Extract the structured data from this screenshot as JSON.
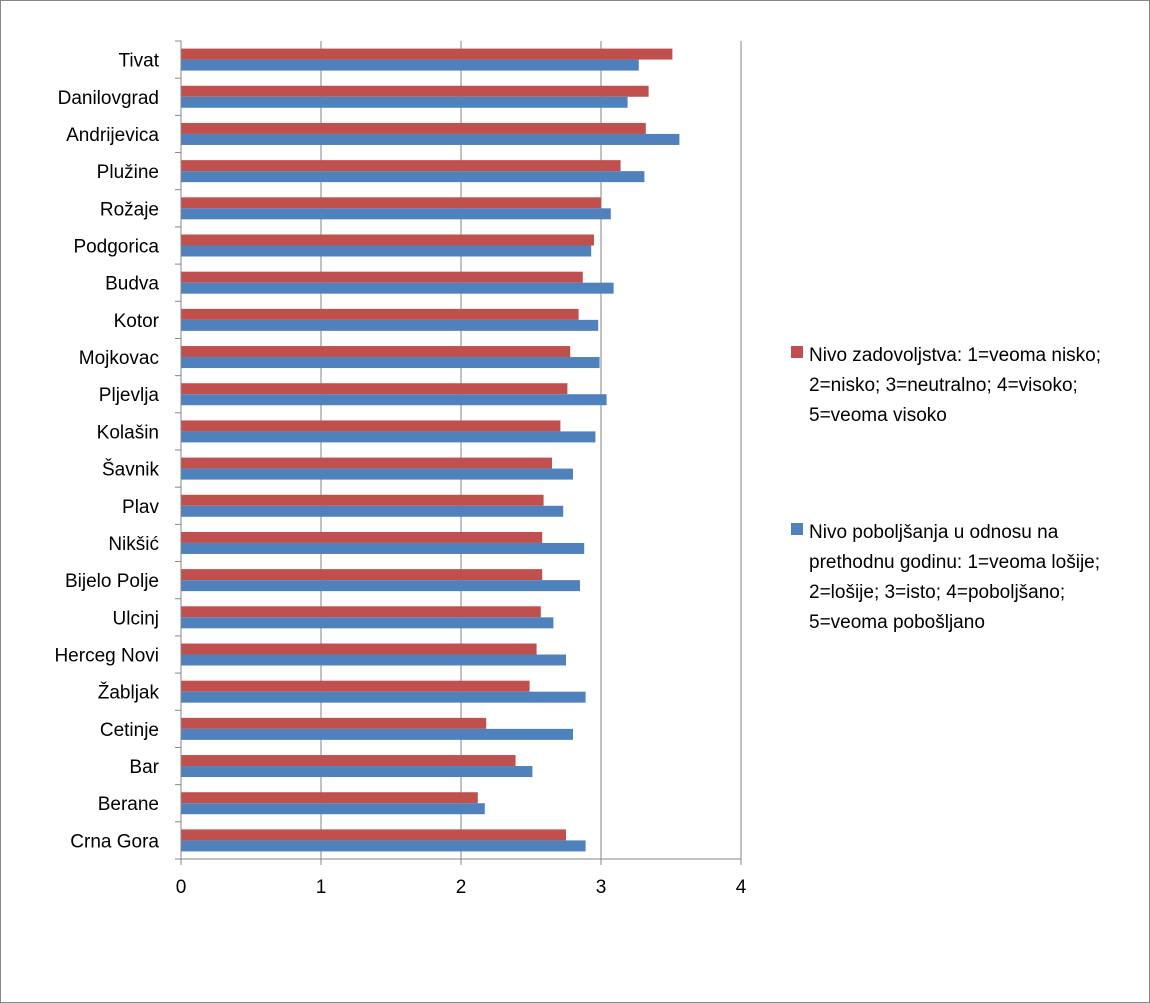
{
  "chart_data": {
    "type": "bar",
    "orientation": "horizontal",
    "categories": [
      "Tivat",
      "Danilovgrad",
      "Andrijevica",
      "Plužine",
      "Rožaje",
      "Podgorica",
      "Budva",
      "Kotor",
      "Mojkovac",
      "Pljevlja",
      "Kolašin",
      "Šavnik",
      "Plav",
      "Nikšić",
      "Bijelo Polje",
      "Ulcinj",
      "Herceg Novi",
      "Žabljak",
      "Cetinje",
      "Bar",
      "Berane",
      "Crna Gora"
    ],
    "series": [
      {
        "name": "Nivo zadovoljstva: 1=veoma nisko; 2=nisko; 3=neutralno; 4=visoko; 5=veoma visoko",
        "color": "#C0504D",
        "values": [
          3.51,
          3.34,
          3.32,
          3.14,
          3.0,
          2.95,
          2.87,
          2.84,
          2.78,
          2.76,
          2.71,
          2.65,
          2.59,
          2.58,
          2.58,
          2.57,
          2.54,
          2.49,
          2.18,
          2.39,
          2.12,
          2.75
        ]
      },
      {
        "name": "Nivo poboljšanja u odnosu na prethodnu godinu: 1=veoma lošije; 2=lošije; 3=isto; 4=poboljšano; 5=veoma pobošljano",
        "color": "#4F81BD",
        "values": [
          3.27,
          3.19,
          3.56,
          3.31,
          3.07,
          2.93,
          3.09,
          2.98,
          2.99,
          3.04,
          2.96,
          2.8,
          2.73,
          2.88,
          2.85,
          2.66,
          2.75,
          2.89,
          2.8,
          2.51,
          2.17,
          2.89
        ]
      }
    ],
    "xlim": [
      0,
      4
    ],
    "xticks": [
      "0",
      "1",
      "2",
      "3",
      "4"
    ],
    "grid": true,
    "legend_position": "right"
  }
}
